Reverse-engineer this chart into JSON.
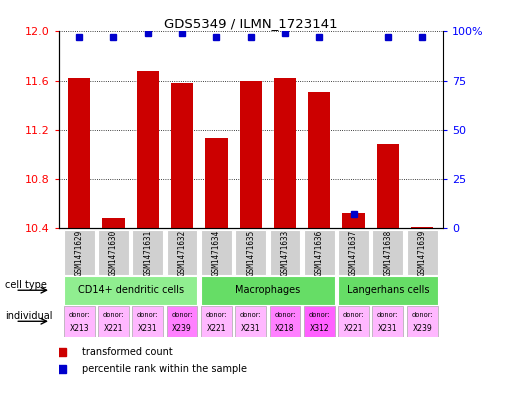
{
  "title": "GDS5349 / ILMN_1723141",
  "samples": [
    "GSM1471629",
    "GSM1471630",
    "GSM1471631",
    "GSM1471632",
    "GSM1471634",
    "GSM1471635",
    "GSM1471633",
    "GSM1471636",
    "GSM1471637",
    "GSM1471638",
    "GSM1471639"
  ],
  "transformed_counts": [
    11.62,
    10.48,
    11.68,
    11.58,
    11.13,
    11.6,
    11.62,
    11.51,
    10.52,
    11.08,
    10.41
  ],
  "percentile_ranks": [
    97,
    97,
    99,
    99,
    97,
    97,
    99,
    97,
    7,
    97,
    97
  ],
  "ylim_left": [
    10.4,
    12.0
  ],
  "ylim_right": [
    0,
    100
  ],
  "yticks_left": [
    10.4,
    10.8,
    11.2,
    11.6,
    12.0
  ],
  "yticks_right": [
    0,
    25,
    50,
    75,
    100
  ],
  "group_ranges": [
    [
      0,
      3,
      "CD14+ dendritic cells",
      "#90EE90"
    ],
    [
      4,
      7,
      "Macrophages",
      "#66DD66"
    ],
    [
      8,
      10,
      "Langerhans cells",
      "#66DD66"
    ]
  ],
  "individuals": [
    "X213",
    "X221",
    "X231",
    "X239",
    "X221",
    "X231",
    "X218",
    "X312",
    "X221",
    "X231",
    "X239"
  ],
  "individual_colors": [
    "#FFB8FF",
    "#FFB8FF",
    "#FFB8FF",
    "#FF80FF",
    "#FFB8FF",
    "#FFB8FF",
    "#FF80FF",
    "#FF60FF",
    "#FFB8FF",
    "#FFB8FF",
    "#FFB8FF"
  ],
  "bar_color": "#cc0000",
  "dot_color": "#0000cc",
  "bar_baseline": 10.4,
  "sample_bg": "#d0d0d0"
}
